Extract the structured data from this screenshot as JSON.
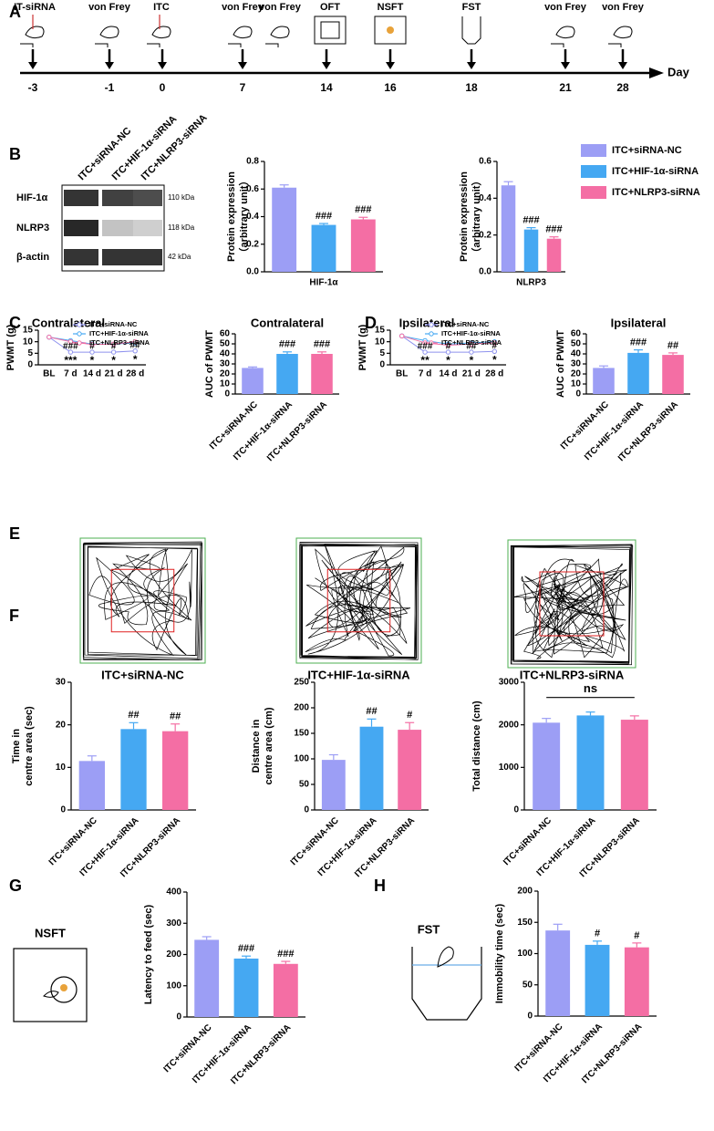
{
  "panels": [
    "A",
    "B",
    "C",
    "D",
    "E",
    "F",
    "G",
    "H"
  ],
  "timeline": {
    "events": [
      "IT-siRNA",
      "von Frey",
      "ITC",
      "von Frey",
      "von Frey",
      "OFT",
      "NSFT",
      "FST",
      "von Frey",
      "von Frey"
    ],
    "days": [
      -3,
      -1,
      0,
      7,
      14,
      16,
      18,
      21,
      28
    ],
    "axis_label": "Day"
  },
  "blot": {
    "lanes": [
      "ITC+siRNA-NC",
      "ITC+HIF-1α-siRNA",
      "ITC+NLRP3-siRNA"
    ],
    "rows": [
      {
        "label": "HIF-1α",
        "size": "110 kDa"
      },
      {
        "label": "NLRP3",
        "size": "118 kDa"
      },
      {
        "label": "β-actin",
        "size": "42 kDa"
      }
    ]
  },
  "open_field": {
    "captions": [
      "ITC+siRNA-NC",
      "ITC+HIF-1α-siRNA",
      "ITC+NLRP3-siRNA"
    ]
  },
  "icons": {
    "nsft": "NSFT",
    "fst": "FST"
  },
  "chart_data": [
    {
      "type": "bar",
      "y_label": [
        "Protein expression",
        "（arbitrary unit）"
      ],
      "categories": [
        "HIF-1α"
      ],
      "series": [
        {
          "color": "#9c9ef5",
          "values": [
            0.61
          ],
          "errors": [
            0.02
          ]
        },
        {
          "color": "#45a8f2",
          "values": [
            0.34
          ],
          "errors": [
            0.01
          ]
        },
        {
          "color": "#f46ea4",
          "values": [
            0.38
          ],
          "errors": [
            0.015
          ]
        }
      ],
      "annotations": [
        null,
        "###",
        "###"
      ],
      "ylim": [
        0,
        0.8
      ],
      "yticks": [
        {
          "value": 0,
          "label": "0.0"
        },
        0.2,
        0.4,
        0.6,
        0.8
      ]
    },
    {
      "type": "bar",
      "y_label": [
        "Protein expression",
        "（arbitrary unit）"
      ],
      "categories": [
        "NLRP3"
      ],
      "series": [
        {
          "name": "ITC+siRNA-NC",
          "color": "#9c9ef5",
          "values": [
            0.47
          ],
          "errors": [
            0.02
          ]
        },
        {
          "name": "ITC+HIF-1α-siRNA",
          "color": "#45a8f2",
          "values": [
            0.23
          ],
          "errors": [
            0.01
          ]
        },
        {
          "name": "ITC+NLRP3-siRNA",
          "color": "#f46ea4",
          "values": [
            0.18
          ],
          "errors": [
            0.01
          ]
        }
      ],
      "annotations": [
        null,
        "###",
        "###"
      ],
      "legend": true,
      "ylim": [
        0,
        0.6
      ],
      "yticks": [
        {
          "value": 0,
          "label": "0.0"
        },
        0.2,
        0.4,
        0.6
      ]
    },
    {
      "type": "line",
      "title": "Contralateral",
      "y_label": [
        "PWMT (g)"
      ],
      "categories": [
        "BL",
        "7 d",
        "14 d",
        "21 d",
        "28 d"
      ],
      "series": [
        {
          "name": "ITC+siRNA-NC",
          "color": "#8f92ee",
          "values": [
            12,
            5.5,
            5.5,
            5.5,
            6
          ]
        },
        {
          "name": "ITC+HIF-1α-siRNA",
          "color": "#45a8f2",
          "values": [
            12,
            10.5,
            9,
            9,
            9.5
          ]
        },
        {
          "name": "ITC+NLRP3-siRNA",
          "color": "#f46ea4",
          "values": [
            12,
            10,
            8.8,
            9,
            10
          ]
        }
      ],
      "annotations_top": [
        null,
        "###",
        "#",
        "#",
        "##"
      ],
      "annotations_bottom": [
        null,
        "***",
        "*",
        "*",
        "*"
      ],
      "legend": true,
      "ylim": [
        0,
        15
      ],
      "yticks": [
        0,
        5,
        10,
        15
      ]
    },
    {
      "type": "bar",
      "title": "Contralateral",
      "y_label": [
        "AUC of PWMT"
      ],
      "categories": [
        "ITC+siRNA-NC",
        "ITC+HIF-1α-siRNA",
        "ITC+NLRP3-siRNA"
      ],
      "values": [
        26,
        40,
        40
      ],
      "errors": [
        1,
        2,
        2
      ],
      "colors": [
        "#9c9ef5",
        "#45a8f2",
        "#f46ea4"
      ],
      "annotations": [
        null,
        "###",
        "###"
      ],
      "ylim": [
        0,
        60
      ],
      "yticks": [
        0,
        10,
        20,
        30,
        40,
        50,
        60
      ]
    },
    {
      "type": "line",
      "title": "Ipsilateral",
      "y_label": [
        "PWMT (g)"
      ],
      "categories": [
        "BL",
        "7 d",
        "14 d",
        "21 d",
        "28 d"
      ],
      "series": [
        {
          "name": "ITC+siRNA-NC",
          "color": "#8f92ee",
          "values": [
            12.5,
            5.5,
            5.5,
            5.5,
            5.8
          ]
        },
        {
          "name": "ITC+HIF-1α-siRNA",
          "color": "#45a8f2",
          "values": [
            12.5,
            10.5,
            9,
            9.5,
            10
          ]
        },
        {
          "name": "ITC+NLRP3-siRNA",
          "color": "#f46ea4",
          "values": [
            12.5,
            9.5,
            8.5,
            9,
            9.5
          ]
        }
      ],
      "annotations_top": [
        null,
        "###",
        "#",
        "##",
        "#"
      ],
      "annotations_bottom": [
        null,
        "**",
        "*",
        "*",
        "*"
      ],
      "legend": true,
      "ylim": [
        0,
        15
      ],
      "yticks": [
        0,
        5,
        10,
        15
      ]
    },
    {
      "type": "bar",
      "title": "Ipsilateral",
      "y_label": [
        "AUC of PWMT"
      ],
      "categories": [
        "ITC+siRNA-NC",
        "ITC+HIF-1α-siRNA",
        "ITC+NLRP3-siRNA"
      ],
      "values": [
        26,
        41,
        39
      ],
      "errors": [
        2,
        3,
        2
      ],
      "colors": [
        "#9c9ef5",
        "#45a8f2",
        "#f46ea4"
      ],
      "annotations": [
        null,
        "###",
        "##"
      ],
      "ylim": [
        0,
        60
      ],
      "yticks": [
        0,
        10,
        20,
        30,
        40,
        50,
        60
      ]
    },
    {
      "type": "bar",
      "y_label": [
        "Time in",
        "centre area (sec)"
      ],
      "categories": [
        "ITC+siRNA-NC",
        "ITC+HIF-1α-siRNA",
        "ITC+NLRP3-siRNA"
      ],
      "values": [
        11.5,
        19,
        18.5
      ],
      "errors": [
        1.2,
        1.5,
        1.7
      ],
      "colors": [
        "#9c9ef5",
        "#45a8f2",
        "#f46ea4"
      ],
      "annotations": [
        null,
        "##",
        "##"
      ],
      "ylim": [
        0,
        30
      ],
      "yticks": [
        0,
        10,
        20,
        30
      ]
    },
    {
      "type": "bar",
      "y_label": [
        "Distance in",
        "centre area (cm)"
      ],
      "categories": [
        "ITC+siRNA-NC",
        "ITC+HIF-1α-siRNA",
        "ITC+NLRP3-siRNA"
      ],
      "values": [
        98,
        163,
        157
      ],
      "errors": [
        10,
        15,
        14
      ],
      "colors": [
        "#9c9ef5",
        "#45a8f2",
        "#f46ea4"
      ],
      "annotations": [
        null,
        "##",
        "#"
      ],
      "ylim": [
        0,
        250
      ],
      "yticks": [
        0,
        50,
        100,
        150,
        200,
        250
      ]
    },
    {
      "type": "bar",
      "y_label": [
        "Total distance (cm)"
      ],
      "categories": [
        "ITC+siRNA-NC",
        "ITC+HIF-1α-siRNA",
        "ITC+NLRP3-siRNA"
      ],
      "values": [
        2050,
        2220,
        2120
      ],
      "errors": [
        100,
        80,
        90
      ],
      "colors": [
        "#9c9ef5",
        "#45a8f2",
        "#f46ea4"
      ],
      "bracket_label": "ns",
      "ylim": [
        0,
        3000
      ],
      "yticks": [
        0,
        1000,
        2000,
        3000
      ]
    },
    {
      "type": "bar",
      "y_label": [
        "Latency to feed (sec)"
      ],
      "categories": [
        "ITC+siRNA-NC",
        "ITC+HIF-1α-siRNA",
        "ITC+NLRP3-siRNA"
      ],
      "values": [
        247,
        187,
        170
      ],
      "errors": [
        10,
        8,
        8
      ],
      "colors": [
        "#9c9ef5",
        "#45a8f2",
        "#f46ea4"
      ],
      "annotations": [
        null,
        "###",
        "###"
      ],
      "ylim": [
        0,
        400
      ],
      "yticks": [
        0,
        100,
        200,
        300,
        400
      ]
    },
    {
      "type": "bar",
      "y_label": [
        "Immobility time (sec)"
      ],
      "categories": [
        "ITC+siRNA-NC",
        "ITC+HIF-1α-siRNA",
        "ITC+NLRP3-siRNA"
      ],
      "values": [
        137,
        114,
        110
      ],
      "errors": [
        10,
        6,
        7
      ],
      "colors": [
        "#9c9ef5",
        "#45a8f2",
        "#f46ea4"
      ],
      "annotations": [
        null,
        "#",
        "#"
      ],
      "ylim": [
        0,
        200
      ],
      "yticks": [
        0,
        50,
        100,
        150,
        200
      ]
    }
  ]
}
